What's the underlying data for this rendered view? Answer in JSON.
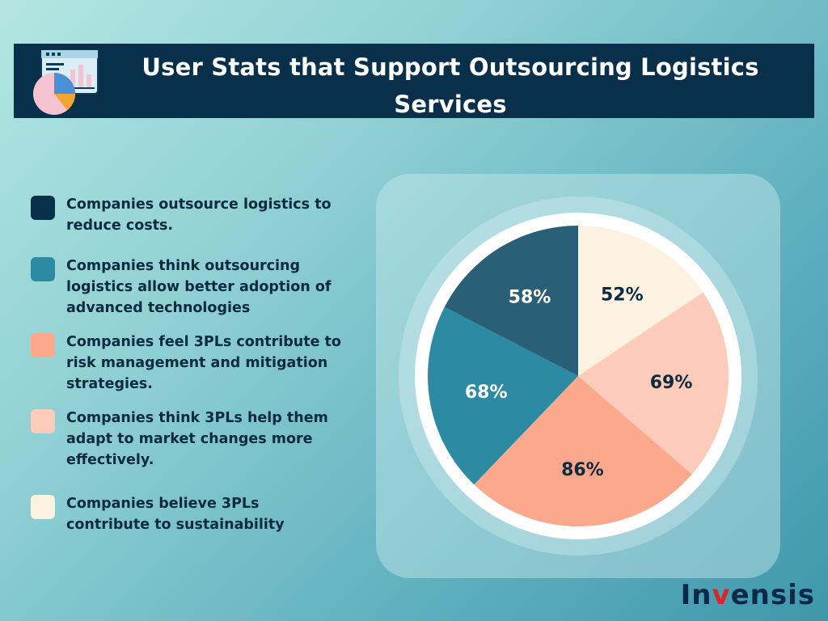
{
  "banner": {
    "title": "User Stats that Support Outsourcing Logistics Services",
    "icon": "chart-dashboard-icon"
  },
  "chart_data": {
    "type": "pie",
    "title": "User Stats that Support Outsourcing Logistics Services",
    "slices": [
      {
        "label": "Companies believe 3PLs contribute to sustainability",
        "value": 52,
        "value_label": "52%",
        "color": "#fbf2e2",
        "text_color": "#0c2b40"
      },
      {
        "label": "Companies think 3PLs help them adapt to market changes more effectively.",
        "value": 69,
        "value_label": "69%",
        "color": "#fdcbb9",
        "text_color": "#0c2b40"
      },
      {
        "label": "Companies feel 3PLs contribute to risk management and mitigation strategies.",
        "value": 86,
        "value_label": "86%",
        "color": "#fca88c",
        "text_color": "#0c2b40"
      },
      {
        "label": "Companies think outsourcing logistics allow better adoption of advanced technologies",
        "value": 68,
        "value_label": "68%",
        "color": "#2d8aa3",
        "text_color": "#ffffff"
      },
      {
        "label": "Companies outsource logistics to reduce costs.",
        "value": 58,
        "value_label": "58%",
        "color": "#2a6077",
        "text_color": "#ffffff"
      }
    ],
    "legend": [
      {
        "label": "Companies outsource logistics to reduce costs.",
        "color": "#08304a"
      },
      {
        "label": "Companies think outsourcing logistics allow better adoption of advanced technologies",
        "color": "#2d8aa3"
      },
      {
        "label": "Companies feel 3PLs contribute to risk management and mitigation strategies.",
        "color": "#fca88c"
      },
      {
        "label": "Companies think 3PLs help them adapt to market changes more effectively.",
        "color": "#fdcbb9"
      },
      {
        "label": "Companies believe 3PLs contribute to sustainability",
        "color": "#fbf2e2"
      }
    ],
    "legend_position": "left"
  },
  "logo": {
    "before": "In",
    "accent": "v",
    "after": "ensis"
  }
}
